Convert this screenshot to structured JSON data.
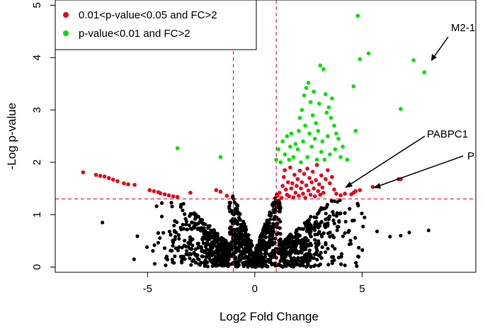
{
  "chart_data": {
    "type": "scatter",
    "title": "",
    "xlabel": "Log2 Fold Change",
    "ylabel": "-Log p-value",
    "xlim": [
      -9.3,
      10.3
    ],
    "ylim": [
      -0.1,
      5.1
    ],
    "xticks": [
      -5,
      0,
      5
    ],
    "yticks": [
      0,
      1,
      2,
      3,
      4,
      5
    ],
    "grid": false,
    "legend_position": "top-left",
    "thresholds": {
      "vlines": [
        -1,
        1
      ],
      "hline": 1.3,
      "color": "#e8001c"
    },
    "legend": [
      {
        "label": "0.01<p-value<0.05 and FC>2",
        "color": "#e8001c"
      },
      {
        "label": "p-value<0.01 and FC>2",
        "color": "#00e000"
      }
    ],
    "series": [
      {
        "name": "0.01<p-value<0.05 and FC>2",
        "color": "#e8001c",
        "points": [
          [
            -8.0,
            1.81
          ],
          [
            -7.4,
            1.76
          ],
          [
            -7.2,
            1.74
          ],
          [
            -7.0,
            1.73
          ],
          [
            -6.8,
            1.7
          ],
          [
            -6.6,
            1.67
          ],
          [
            -6.4,
            1.64
          ],
          [
            -6.1,
            1.6
          ],
          [
            -5.9,
            1.58
          ],
          [
            -5.6,
            1.57
          ],
          [
            -4.9,
            1.47
          ],
          [
            -4.7,
            1.45
          ],
          [
            -4.5,
            1.43
          ],
          [
            -4.4,
            1.41
          ],
          [
            -4.2,
            1.39
          ],
          [
            -4.0,
            1.37
          ],
          [
            -3.8,
            1.35
          ],
          [
            -3.6,
            1.34
          ],
          [
            -3.0,
            1.42
          ],
          [
            -1.8,
            1.47
          ],
          [
            -1.6,
            1.44
          ],
          [
            -1.3,
            1.36
          ],
          [
            1.05,
            1.36
          ],
          [
            1.15,
            1.42
          ],
          [
            1.25,
            1.32
          ],
          [
            1.3,
            1.55
          ],
          [
            1.35,
            1.72
          ],
          [
            1.4,
            1.85
          ],
          [
            1.45,
            1.48
          ],
          [
            1.5,
            1.38
          ],
          [
            1.55,
            1.62
          ],
          [
            1.6,
            1.35
          ],
          [
            1.65,
            1.9
          ],
          [
            1.7,
            1.5
          ],
          [
            1.75,
            1.6
          ],
          [
            1.8,
            1.33
          ],
          [
            1.85,
            1.76
          ],
          [
            1.9,
            1.42
          ],
          [
            1.95,
            1.55
          ],
          [
            2.0,
            1.68
          ],
          [
            2.05,
            1.36
          ],
          [
            2.1,
            1.84
          ],
          [
            2.15,
            1.5
          ],
          [
            2.2,
            1.62
          ],
          [
            2.25,
            1.4
          ],
          [
            2.3,
            1.78
          ],
          [
            2.35,
            1.32
          ],
          [
            2.4,
            1.56
          ],
          [
            2.45,
            1.88
          ],
          [
            2.5,
            1.46
          ],
          [
            2.55,
            1.7
          ],
          [
            2.6,
            1.38
          ],
          [
            2.65,
            1.62
          ],
          [
            2.7,
            1.82
          ],
          [
            2.75,
            1.5
          ],
          [
            2.8,
            1.35
          ],
          [
            2.85,
            1.66
          ],
          [
            2.9,
            1.95
          ],
          [
            2.95,
            1.45
          ],
          [
            3.0,
            1.58
          ],
          [
            3.05,
            1.38
          ],
          [
            3.1,
            1.75
          ],
          [
            3.15,
            1.52
          ],
          [
            3.2,
            1.42
          ],
          [
            3.3,
            1.68
          ],
          [
            3.4,
            1.85
          ],
          [
            3.5,
            1.6
          ],
          [
            3.6,
            1.72
          ],
          [
            3.7,
            1.48
          ],
          [
            3.8,
            1.4
          ],
          [
            4.0,
            1.37
          ],
          [
            4.2,
            1.4
          ],
          [
            4.5,
            1.39
          ],
          [
            4.6,
            1.42
          ],
          [
            4.7,
            1.45
          ],
          [
            4.9,
            1.47
          ],
          [
            5.5,
            1.53
          ],
          [
            6.7,
            1.68
          ],
          [
            6.8,
            1.68
          ]
        ]
      },
      {
        "name": "p-value<0.01 and FC>2",
        "color": "#00e000",
        "points": [
          [
            -3.6,
            2.27
          ],
          [
            -1.6,
            2.1
          ],
          [
            1.0,
            2.05
          ],
          [
            1.1,
            2.25
          ],
          [
            1.2,
            2.0
          ],
          [
            1.3,
            2.4
          ],
          [
            1.4,
            2.15
          ],
          [
            1.5,
            2.5
          ],
          [
            1.6,
            2.05
          ],
          [
            1.65,
            2.3
          ],
          [
            1.7,
            2.55
          ],
          [
            1.8,
            2.1
          ],
          [
            1.9,
            2.35
          ],
          [
            2.0,
            2.25
          ],
          [
            2.05,
            2.6
          ],
          [
            2.1,
            2.85
          ],
          [
            2.15,
            2.0
          ],
          [
            2.2,
            3.0
          ],
          [
            2.25,
            2.4
          ],
          [
            2.3,
            3.28
          ],
          [
            2.35,
            2.7
          ],
          [
            2.4,
            3.42
          ],
          [
            2.45,
            2.1
          ],
          [
            2.5,
            3.52
          ],
          [
            2.55,
            2.55
          ],
          [
            2.6,
            3.15
          ],
          [
            2.65,
            2.3
          ],
          [
            2.7,
            2.9
          ],
          [
            2.75,
            3.35
          ],
          [
            2.8,
            2.45
          ],
          [
            2.85,
            2.75
          ],
          [
            2.9,
            2.05
          ],
          [
            2.95,
            2.6
          ],
          [
            3.0,
            3.12
          ],
          [
            3.05,
            3.85
          ],
          [
            3.1,
            2.2
          ],
          [
            3.15,
            2.4
          ],
          [
            3.2,
            3.78
          ],
          [
            3.25,
            2.05
          ],
          [
            3.3,
            3.3
          ],
          [
            3.35,
            2.95
          ],
          [
            3.4,
            2.5
          ],
          [
            3.45,
            3.05
          ],
          [
            3.5,
            2.15
          ],
          [
            3.55,
            2.85
          ],
          [
            3.6,
            3.22
          ],
          [
            3.7,
            2.7
          ],
          [
            3.75,
            2.25
          ],
          [
            3.8,
            2.55
          ],
          [
            3.9,
            2.45
          ],
          [
            4.0,
            2.1
          ],
          [
            4.1,
            2.3
          ],
          [
            4.3,
            2.05
          ],
          [
            4.6,
            3.45
          ],
          [
            4.7,
            2.6
          ],
          [
            4.8,
            4.8
          ],
          [
            4.9,
            3.97
          ],
          [
            5.3,
            4.08
          ],
          [
            6.8,
            3.02
          ],
          [
            7.4,
            3.95
          ],
          [
            7.9,
            3.72
          ]
        ]
      }
    ],
    "annotations": [
      {
        "text": "M2-1"
      },
      {
        "text": "PABPC1"
      },
      {
        "text": "P"
      }
    ]
  }
}
